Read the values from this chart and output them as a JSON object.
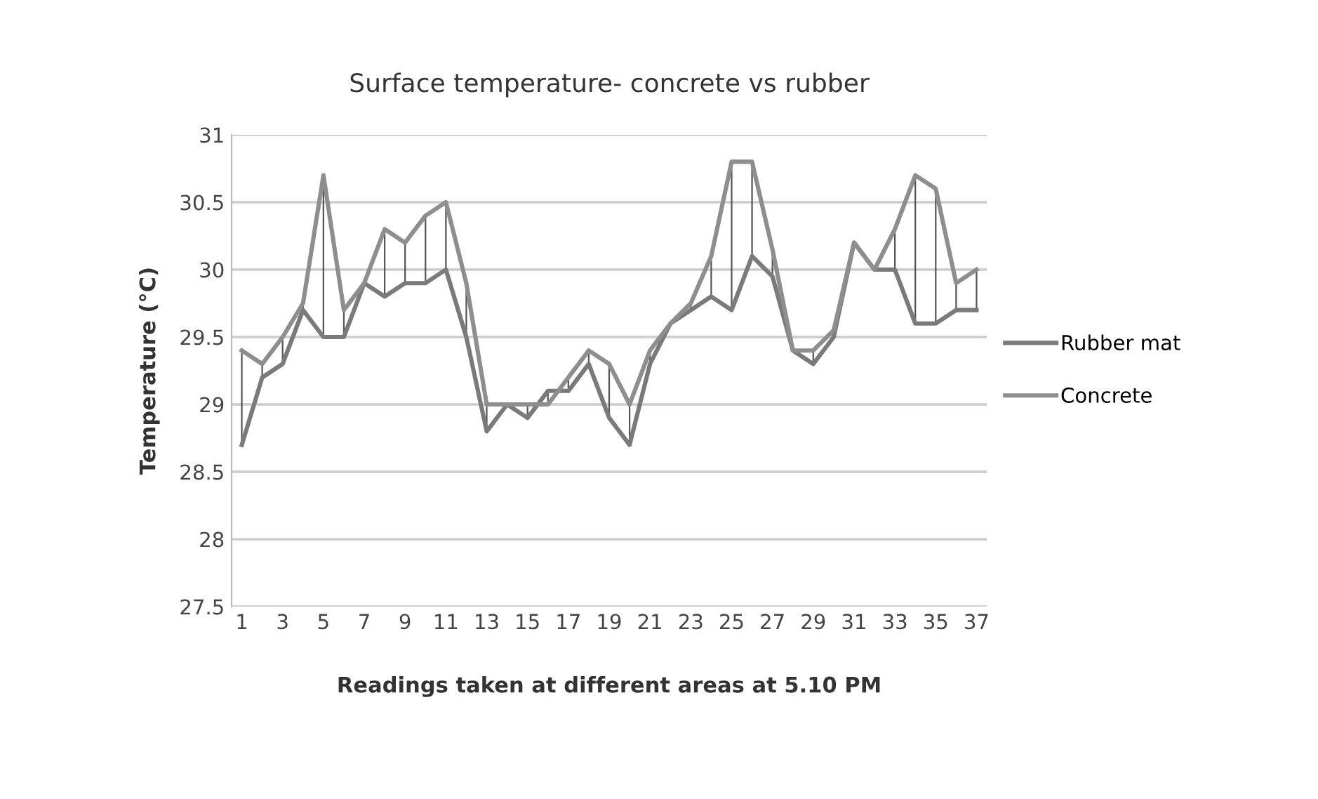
{
  "chart_data": {
    "type": "line",
    "title": "Surface temperature- concrete vs rubber",
    "xlabel": "Readings taken at different areas at 5.10 PM",
    "ylabel": "Temperature (°C)",
    "categories": [
      "1",
      null,
      "3",
      null,
      "5",
      null,
      "7",
      null,
      "9",
      null,
      "11",
      null,
      "13",
      null,
      "15",
      null,
      "17",
      null,
      "19",
      null,
      "21",
      null,
      "23",
      null,
      "25",
      null,
      "27",
      null,
      "29",
      null,
      "31",
      null,
      "33",
      null,
      "35",
      null,
      "37"
    ],
    "series": [
      {
        "name": "Rubber mat",
        "color": "#7a7a7a",
        "values": [
          28.7,
          29.2,
          29.3,
          29.7,
          29.5,
          29.5,
          29.9,
          29.8,
          29.9,
          29.9,
          30.0,
          29.5,
          28.8,
          29.0,
          28.9,
          29.1,
          29.1,
          29.3,
          28.9,
          28.7,
          29.3,
          29.6,
          29.7,
          29.8,
          29.7,
          30.1,
          29.95,
          29.4,
          29.3,
          29.5,
          30.2,
          30.0,
          30.0,
          29.6,
          29.6,
          29.7,
          29.7
        ],
        "errors": [
          [
            28.7,
            29.4
          ],
          [
            29.2,
            29.3
          ],
          [
            29.3,
            29.5
          ],
          [
            29.7,
            29.75
          ],
          [
            29.5,
            30.7
          ],
          [
            29.5,
            29.7
          ],
          null,
          [
            29.8,
            30.3
          ],
          [
            29.9,
            30.2
          ],
          [
            29.9,
            30.4
          ],
          [
            30.0,
            30.5
          ],
          [
            29.5,
            29.9
          ],
          [
            28.8,
            29.0
          ],
          null,
          [
            28.9,
            29.0
          ],
          [
            29.0,
            29.1
          ],
          [
            29.1,
            29.2
          ],
          [
            29.3,
            29.4
          ],
          [
            28.9,
            29.3
          ],
          [
            28.7,
            29.0
          ],
          [
            29.3,
            29.4
          ],
          null,
          [
            29.7,
            29.75
          ],
          [
            29.8,
            30.1
          ],
          [
            29.7,
            30.8
          ],
          [
            30.1,
            30.8
          ],
          [
            29.95,
            30.15
          ],
          null,
          [
            29.3,
            29.4
          ],
          [
            29.5,
            29.55
          ],
          null,
          null,
          [
            30.0,
            30.3
          ],
          [
            29.6,
            30.7
          ],
          [
            29.6,
            30.6
          ],
          [
            29.7,
            29.9
          ],
          [
            29.7,
            30.0
          ]
        ]
      },
      {
        "name": "Concrete",
        "color": "#8e8e8e",
        "values": [
          29.4,
          29.3,
          29.5,
          29.75,
          30.7,
          29.7,
          29.9,
          30.3,
          30.2,
          30.4,
          30.5,
          29.9,
          29.0,
          29.0,
          29.0,
          29.0,
          29.2,
          29.4,
          29.3,
          29.0,
          29.4,
          29.6,
          29.75,
          30.1,
          30.8,
          30.8,
          30.15,
          29.4,
          29.4,
          29.55,
          30.2,
          30.0,
          30.3,
          30.7,
          30.6,
          29.9,
          30.0
        ]
      }
    ],
    "ylim": [
      27.5,
      31
    ],
    "yticks": [
      27.5,
      28,
      28.5,
      29,
      29.5,
      30,
      30.5,
      31
    ],
    "grid": "y",
    "legend": "right",
    "marker": "none",
    "line_style": "solid"
  }
}
